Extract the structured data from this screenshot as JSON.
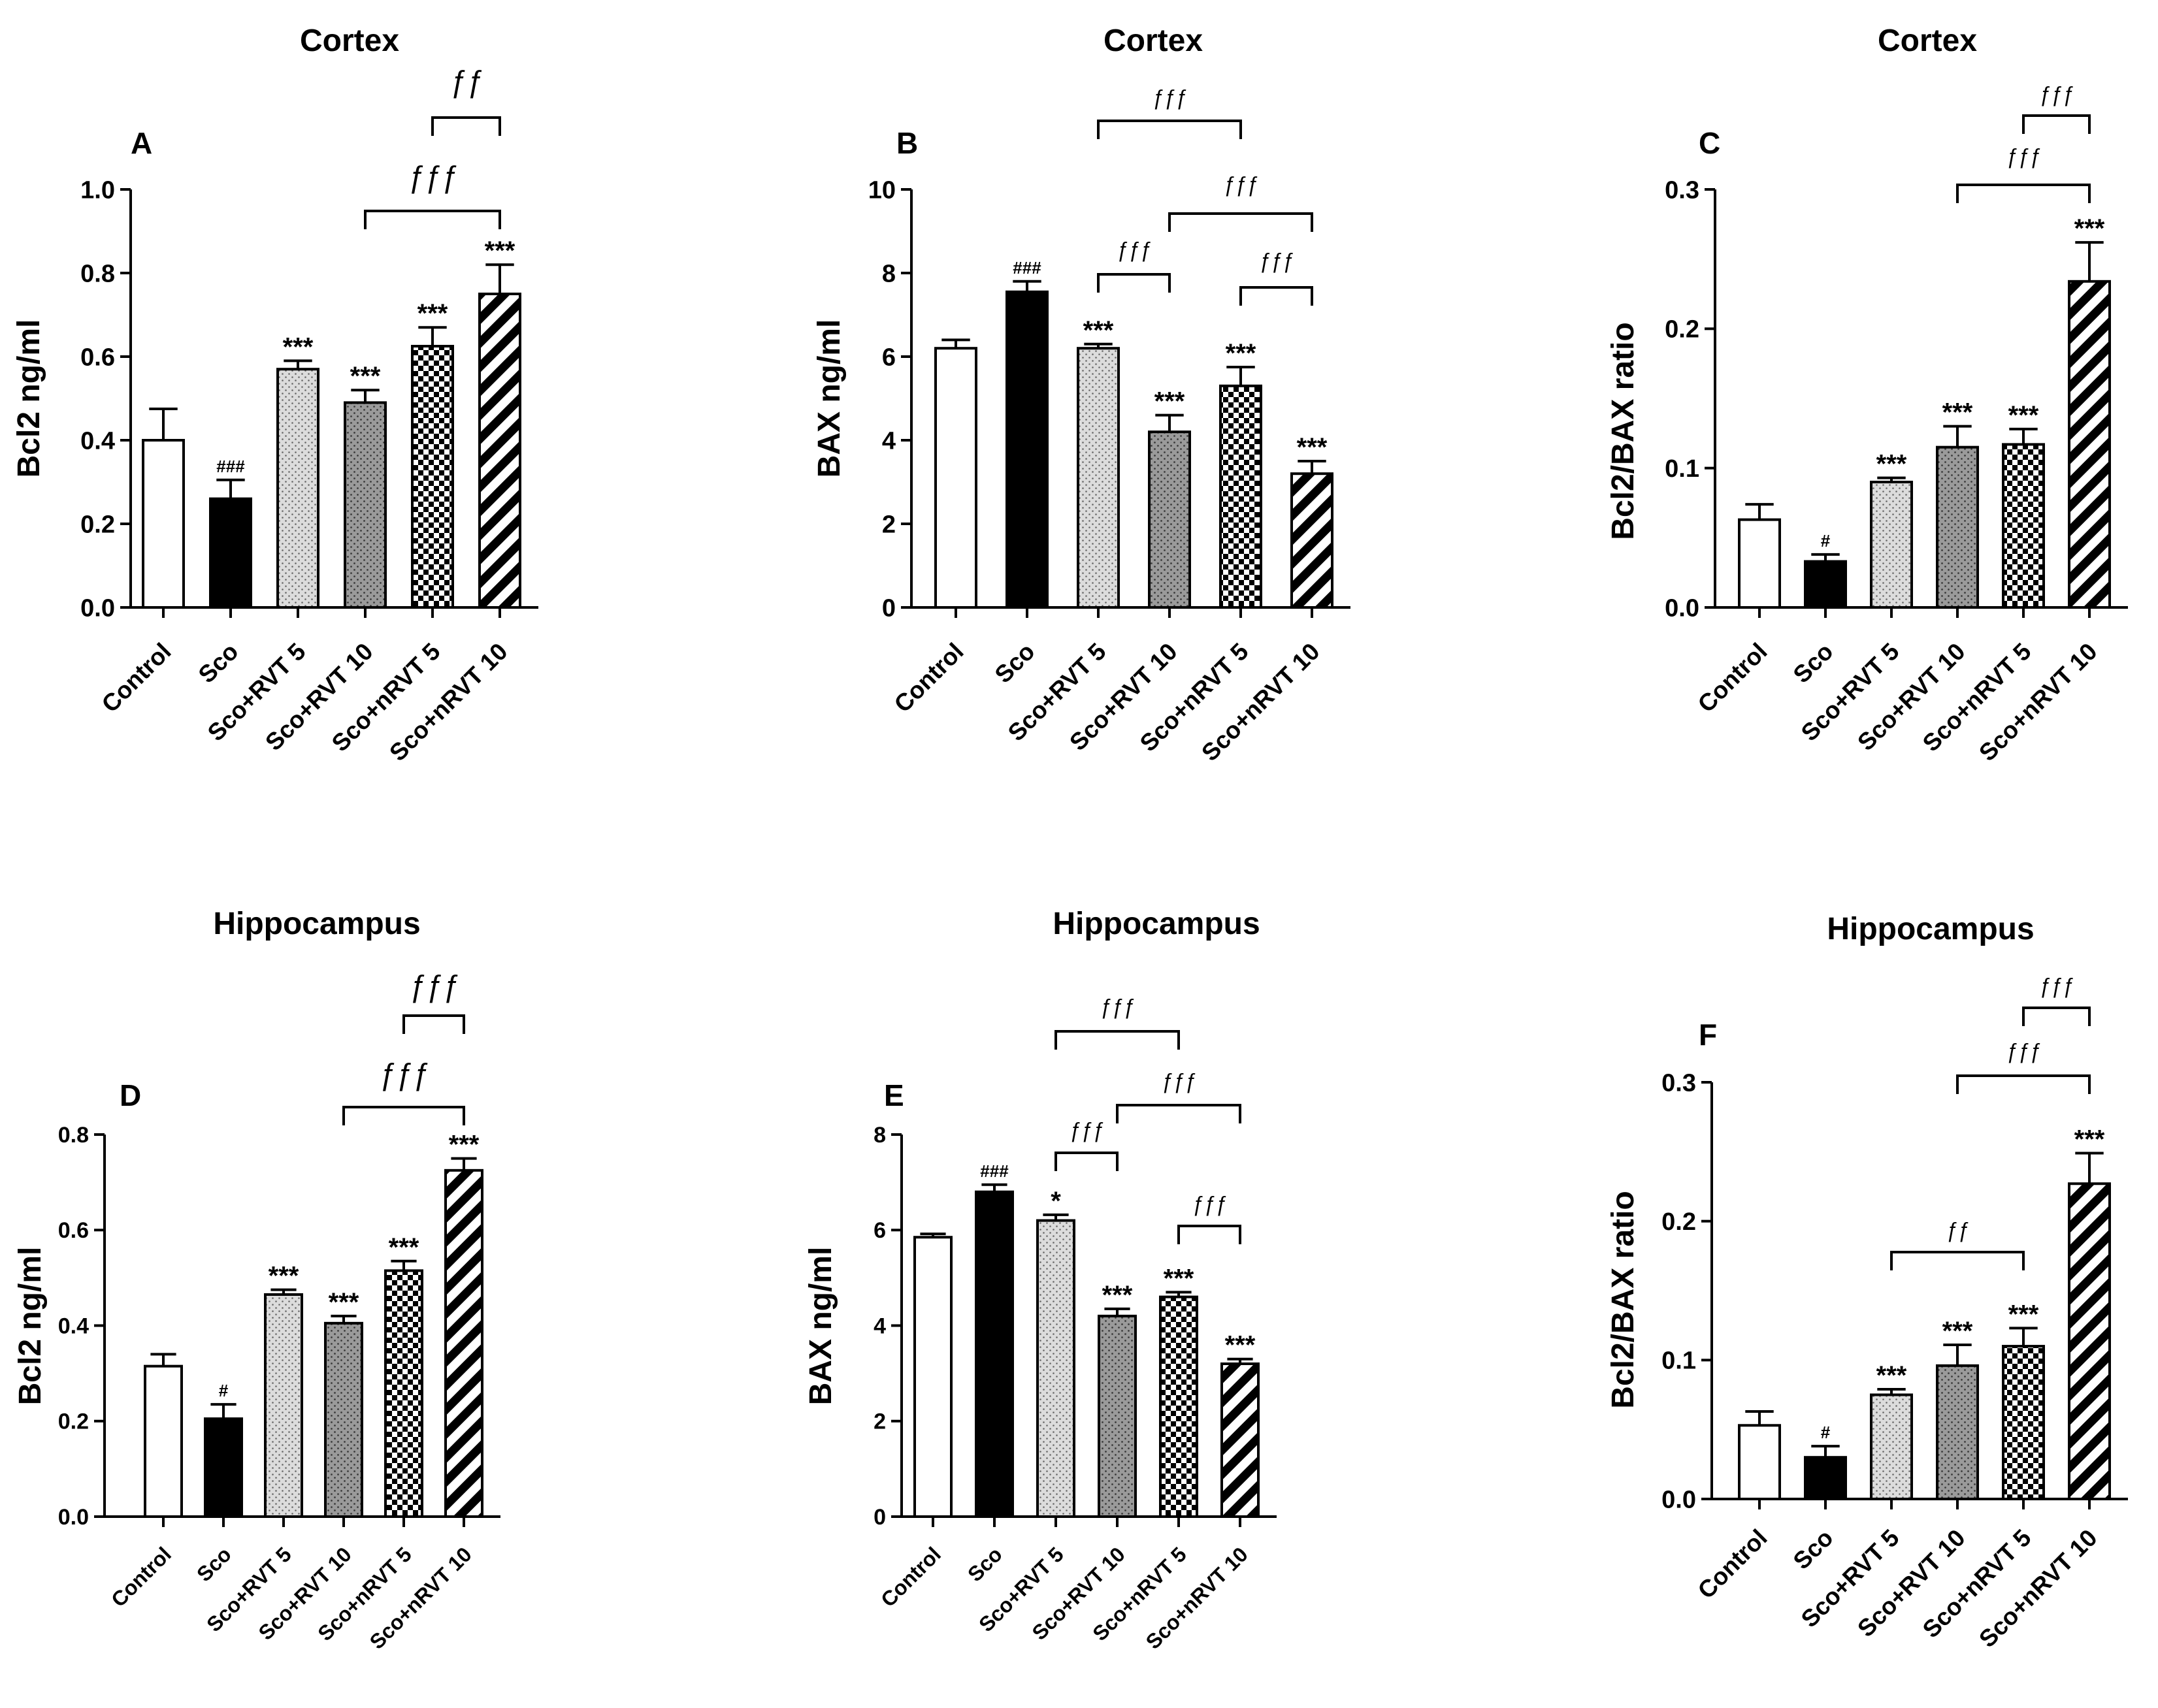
{
  "chart_data": [
    {
      "type": "bar",
      "letter": "A",
      "title": "Cortex",
      "ylabel": "Bcl2 ng/ml",
      "xlabel": "",
      "categories": [
        "Control",
        "Sco",
        "Sco+RVT 5",
        "Sco+RVT 10",
        "Sco+nRVT 5",
        "Sco+nRVT 10"
      ],
      "values": [
        0.4,
        0.26,
        0.57,
        0.49,
        0.625,
        0.75
      ],
      "errors": [
        0.075,
        0.045,
        0.02,
        0.03,
        0.045,
        0.07
      ],
      "ylim": [
        0,
        1.0
      ],
      "yticks": [
        "0.0",
        "0.2",
        "0.4",
        "0.6",
        "0.8",
        "1.0"
      ],
      "labels": [
        "",
        "###",
        "***",
        "***",
        "***",
        "***"
      ],
      "brackets": [
        {
          "from": "Sco+RVT 10",
          "to": "Sco+nRVT 10",
          "text": "ƒƒƒ"
        },
        {
          "from": "Sco+nRVT 5",
          "to": "Sco+nRVT 10",
          "text": "ƒƒ"
        }
      ]
    },
    {
      "type": "bar",
      "letter": "B",
      "title": "Cortex",
      "ylabel": "BAX ng/ml",
      "xlabel": "",
      "categories": [
        "Control",
        "Sco",
        "Sco+RVT 5",
        "Sco+RVT 10",
        "Sco+nRVT 5",
        "Sco+nRVT 10"
      ],
      "values": [
        6.2,
        7.55,
        6.2,
        4.2,
        5.3,
        3.2
      ],
      "errors": [
        0.2,
        0.25,
        0.1,
        0.4,
        0.45,
        0.3
      ],
      "ylim": [
        0,
        10
      ],
      "yticks": [
        "0",
        "2",
        "4",
        "6",
        "8",
        "10"
      ],
      "labels": [
        "",
        "###",
        "***",
        "***",
        "***",
        "***"
      ],
      "brackets": [
        {
          "from": "Sco+RVT 5",
          "to": "Sco+RVT 10",
          "text": "ƒƒƒ"
        },
        {
          "from": "Sco+nRVT 5",
          "to": "Sco+nRVT 10",
          "text": "ƒƒƒ"
        },
        {
          "from": "Sco+RVT 10",
          "to": "Sco+nRVT 10",
          "text": "ƒƒƒ"
        },
        {
          "from": "Sco+RVT 5",
          "to": "Sco+nRVT 5",
          "text": "ƒƒƒ"
        }
      ]
    },
    {
      "type": "bar",
      "letter": "C",
      "title": "Cortex",
      "ylabel": "Bcl2/BAX ratio",
      "xlabel": "",
      "categories": [
        "Control",
        "Sco",
        "Sco+RVT 5",
        "Sco+RVT 10",
        "Sco+nRVT 5",
        "Sco+nRVT 10"
      ],
      "values": [
        0.063,
        0.033,
        0.09,
        0.115,
        0.117,
        0.234
      ],
      "errors": [
        0.011,
        0.005,
        0.003,
        0.015,
        0.011,
        0.028
      ],
      "ylim": [
        0,
        0.3
      ],
      "yticks": [
        "0.0",
        "0.1",
        "0.2",
        "0.3"
      ],
      "labels": [
        "",
        "#",
        "***",
        "***",
        "***",
        "***"
      ],
      "brackets": [
        {
          "from": "Sco+RVT 10",
          "to": "Sco+nRVT 10",
          "text": "ƒƒƒ"
        },
        {
          "from": "Sco+nRVT 5",
          "to": "Sco+nRVT 10",
          "text": "ƒƒƒ"
        }
      ]
    },
    {
      "type": "bar",
      "letter": "D",
      "title": "Hippocampus",
      "ylabel": "Bcl2 ng/ml",
      "xlabel": "",
      "categories": [
        "Control",
        "Sco",
        "Sco+RVT 5",
        "Sco+RVT 10",
        "Sco+nRVT 5",
        "Sco+nRVT 10"
      ],
      "values": [
        0.315,
        0.205,
        0.465,
        0.405,
        0.515,
        0.725
      ],
      "errors": [
        0.025,
        0.03,
        0.01,
        0.015,
        0.02,
        0.025
      ],
      "ylim": [
        0,
        0.8
      ],
      "yticks": [
        "0.0",
        "0.2",
        "0.4",
        "0.6",
        "0.8"
      ],
      "labels": [
        "",
        "#",
        "***",
        "***",
        "***",
        "***"
      ],
      "brackets": [
        {
          "from": "Sco+RVT 10",
          "to": "Sco+nRVT 10",
          "text": "ƒƒƒ"
        },
        {
          "from": "Sco+nRVT 5",
          "to": "Sco+nRVT 10",
          "text": "ƒƒƒ"
        }
      ]
    },
    {
      "type": "bar",
      "letter": "E",
      "title": "Hippocampus",
      "ylabel": "BAX ng/ml",
      "xlabel": "",
      "categories": [
        "Control",
        "Sco",
        "Sco+RVT 5",
        "Sco+RVT 10",
        "Sco+nRVT 5",
        "Sco+nRVT 10"
      ],
      "values": [
        5.85,
        6.8,
        6.2,
        4.2,
        4.6,
        3.2
      ],
      "errors": [
        0.07,
        0.15,
        0.12,
        0.15,
        0.1,
        0.1
      ],
      "ylim": [
        0,
        8
      ],
      "yticks": [
        "0",
        "2",
        "4",
        "6",
        "8"
      ],
      "labels": [
        "",
        "###",
        "*",
        "***",
        "***",
        "***"
      ],
      "brackets": [
        {
          "from": "Sco+RVT 5",
          "to": "Sco+RVT 10",
          "text": "ƒƒƒ"
        },
        {
          "from": "Sco+nRVT 5",
          "to": "Sco+nRVT 10",
          "text": "ƒƒƒ"
        },
        {
          "from": "Sco+RVT 10",
          "to": "Sco+nRVT 10",
          "text": "ƒƒƒ"
        },
        {
          "from": "Sco+RVT 5",
          "to": "Sco+nRVT 5",
          "text": "ƒƒƒ"
        }
      ]
    },
    {
      "type": "bar",
      "letter": "F",
      "title": "Hippocampus",
      "ylabel": "Bcl2/BAX ratio",
      "xlabel": "",
      "categories": [
        "Control",
        "Sco",
        "Sco+RVT 5",
        "Sco+RVT 10",
        "Sco+nRVT 5",
        "Sco+nRVT 10"
      ],
      "values": [
        0.053,
        0.03,
        0.075,
        0.096,
        0.11,
        0.227
      ],
      "errors": [
        0.01,
        0.008,
        0.004,
        0.015,
        0.013,
        0.022
      ],
      "ylim": [
        0,
        0.3
      ],
      "yticks": [
        "0.0",
        "0.1",
        "0.2",
        "0.3"
      ],
      "labels": [
        "",
        "#",
        "***",
        "***",
        "***",
        "***"
      ],
      "brackets": [
        {
          "from": "Sco+RVT 5",
          "to": "Sco+nRVT 5",
          "text": "ƒƒ"
        },
        {
          "from": "Sco+RVT 10",
          "to": "Sco+nRVT 10",
          "text": "ƒƒƒ"
        },
        {
          "from": "Sco+nRVT 5",
          "to": "Sco+nRVT 10",
          "text": "ƒƒƒ"
        }
      ]
    }
  ]
}
